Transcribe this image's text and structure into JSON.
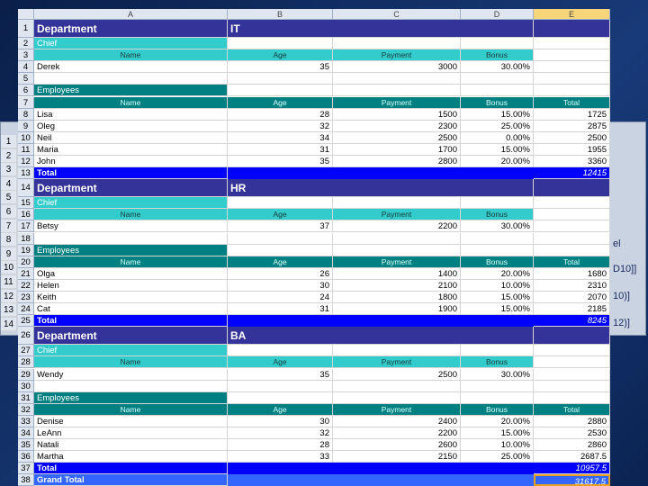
{
  "column_headers": [
    "A",
    "B",
    "C",
    "D",
    "E"
  ],
  "row_numbers": [
    "1",
    "2",
    "3",
    "4",
    "5",
    "6",
    "7",
    "8",
    "9",
    "10",
    "11",
    "12",
    "13",
    "14",
    "15",
    "16",
    "17",
    "18",
    "19",
    "20",
    "21",
    "22",
    "23",
    "24",
    "25",
    "26",
    "27",
    "28",
    "29",
    "30",
    "31",
    "32",
    "33",
    "34",
    "35",
    "36",
    "37",
    "38"
  ],
  "sections": [
    {
      "department_label": "Department",
      "department": "IT",
      "chief_label": "Chief",
      "headers": [
        "Name",
        "Age",
        "Payment",
        "Bonus"
      ],
      "chief": [
        "Derek",
        "35",
        "3000",
        "30.00%"
      ],
      "employees_label": "Employees",
      "employee_headers": [
        "Name",
        "Age",
        "Payment",
        "Bonus",
        "Total"
      ],
      "employees": [
        [
          "Lisa",
          "28",
          "1500",
          "15.00%",
          "1725"
        ],
        [
          "Oleg",
          "32",
          "2300",
          "25.00%",
          "2875"
        ],
        [
          "Neil",
          "34",
          "2500",
          "0.00%",
          "2500"
        ],
        [
          "Maria",
          "31",
          "1700",
          "15.00%",
          "1955"
        ],
        [
          "John",
          "35",
          "2800",
          "20.00%",
          "3360"
        ]
      ],
      "total_label": "Total",
      "total": "12415"
    },
    {
      "department_label": "Department",
      "department": "HR",
      "chief_label": "Chief",
      "headers": [
        "Name",
        "Age",
        "Payment",
        "Bonus"
      ],
      "chief": [
        "Betsy",
        "37",
        "2200",
        "30.00%"
      ],
      "employees_label": "Employees",
      "employee_headers": [
        "Name",
        "Age",
        "Payment",
        "Bonus",
        "Total"
      ],
      "employees": [
        [
          "Olga",
          "26",
          "1400",
          "20.00%",
          "1680"
        ],
        [
          "Helen",
          "30",
          "2100",
          "10.00%",
          "2310"
        ],
        [
          "Keith",
          "24",
          "1800",
          "15.00%",
          "2070"
        ],
        [
          "Cat",
          "31",
          "1900",
          "15.00%",
          "2185"
        ]
      ],
      "total_label": "Total",
      "total": "8245"
    },
    {
      "department_label": "Department",
      "department": "BA",
      "chief_label": "Chief",
      "headers": [
        "Name",
        "Age",
        "Payment",
        "Bonus"
      ],
      "chief": [
        "Wendy",
        "35",
        "2500",
        "30.00%"
      ],
      "employees_label": "Employees",
      "employee_headers": [
        "Name",
        "Age",
        "Payment",
        "Bonus",
        "Total"
      ],
      "employees": [
        [
          "Denise",
          "30",
          "2400",
          "20.00%",
          "2880"
        ],
        [
          "LeAnn",
          "32",
          "2200",
          "15.00%",
          "2530"
        ],
        [
          "Natali",
          "28",
          "2600",
          "10.00%",
          "2860"
        ],
        [
          "Martha",
          "33",
          "2150",
          "25.00%",
          "2687.5"
        ]
      ],
      "total_label": "Total",
      "total": "10957.5"
    }
  ],
  "grand_total_label": "Grand Total",
  "grand_total": "31617.5",
  "back_window": {
    "row_numbers": [
      "1",
      "2",
      "3",
      "4",
      "5",
      "6",
      "7",
      "8",
      "9",
      "10",
      "11",
      "12",
      "13",
      "14"
    ],
    "fragments": [
      "el",
      "D10]]",
      "10)]",
      "12)]"
    ]
  }
}
